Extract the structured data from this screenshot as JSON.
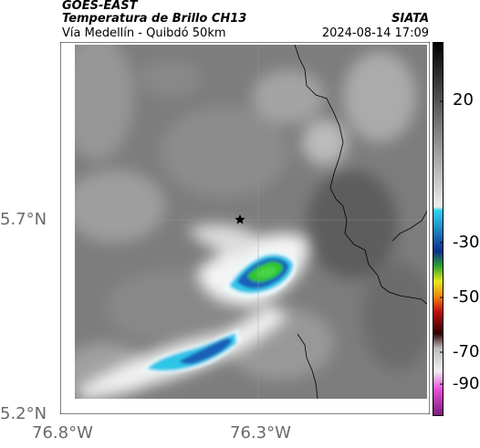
{
  "header": {
    "satellite": "GOES-EAST",
    "product": "Temperatura de Brillo CH13",
    "route": "Vía Medellín - Quibdó 50km",
    "agency": "SIATA",
    "timestamp": "2024-08-14 17:09"
  },
  "map": {
    "lat_labels": [
      "5.7°N",
      "5.2°N"
    ],
    "lon_labels": [
      "76.8°W",
      "76.3°W"
    ],
    "marker_icon": "star-icon"
  },
  "colorbar": {
    "ticks": [
      "20",
      "-30",
      "-50",
      "-70",
      "-90"
    ]
  },
  "colors": {
    "cloud_blue": "#1f6fc4",
    "cloud_cyan": "#2ec6e8",
    "cloud_green": "#2fc42f",
    "background_gray": "#7a7a7a"
  }
}
